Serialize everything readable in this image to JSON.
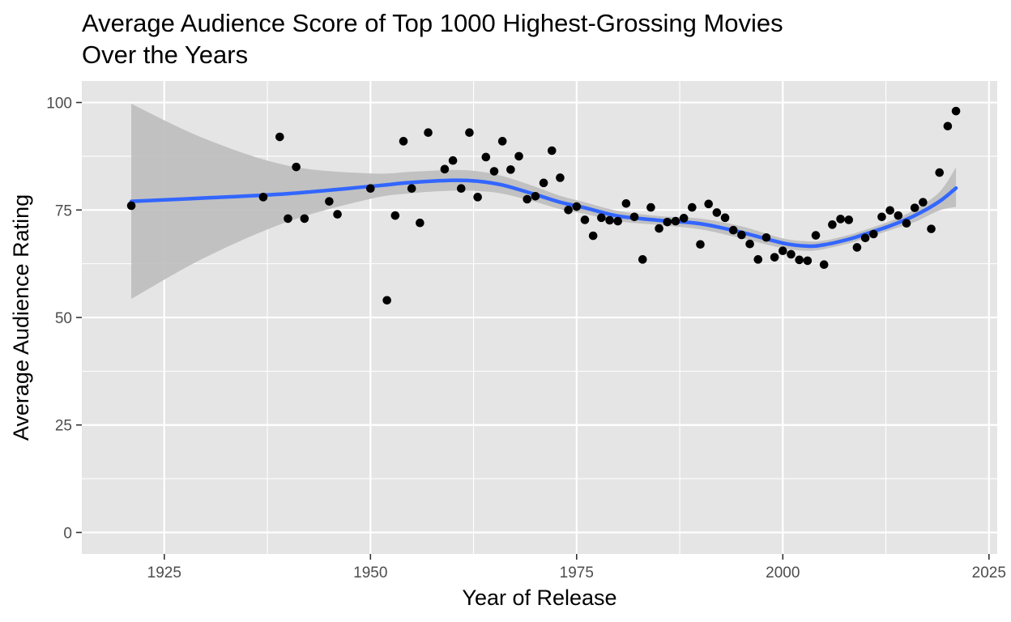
{
  "chart_data": {
    "type": "scatter",
    "title_lines": [
      "Average Audience Score of Top 1000 Highest-Grossing Movies",
      "Over the Years"
    ],
    "xlabel": "Year of Release",
    "ylabel": "Average Audience Rating",
    "xlim": [
      1915,
      2026
    ],
    "ylim": [
      -5,
      105
    ],
    "x_ticks": [
      1925,
      1950,
      1975,
      2000,
      2025
    ],
    "y_ticks": [
      0,
      25,
      50,
      75,
      100
    ],
    "x_tick_labels": [
      "1925",
      "1950",
      "1975",
      "2000",
      "2025"
    ],
    "y_tick_labels": [
      "0",
      "25",
      "50",
      "75",
      "100"
    ],
    "grid": true,
    "legend": "none",
    "colors": {
      "panel_background": "#e5e5e5",
      "grid": "#ffffff",
      "points": "#000000",
      "smooth_line": "#3366ff",
      "confidence_band": "#bcbcbc"
    },
    "series": [
      {
        "type": "scatter",
        "points": [
          [
            1921,
            76
          ],
          [
            1937,
            78
          ],
          [
            1939,
            92
          ],
          [
            1940,
            73
          ],
          [
            1941,
            85
          ],
          [
            1942,
            73
          ],
          [
            1945,
            77
          ],
          [
            1946,
            74
          ],
          [
            1950,
            80
          ],
          [
            1952,
            54
          ],
          [
            1953,
            73.7
          ],
          [
            1954,
            91
          ],
          [
            1955,
            80
          ],
          [
            1956,
            72
          ],
          [
            1957,
            93
          ],
          [
            1959,
            84.5
          ],
          [
            1960,
            86.5
          ],
          [
            1961,
            80
          ],
          [
            1962,
            93
          ],
          [
            1963,
            78
          ],
          [
            1964,
            87.3
          ],
          [
            1965,
            84
          ],
          [
            1966,
            91
          ],
          [
            1967,
            84.4
          ],
          [
            1968,
            87.5
          ],
          [
            1969,
            77.5
          ],
          [
            1970,
            78.2
          ],
          [
            1971,
            81.3
          ],
          [
            1972,
            88.8
          ],
          [
            1973,
            82.5
          ],
          [
            1974,
            75
          ],
          [
            1975,
            75.8
          ],
          [
            1976,
            72.7
          ],
          [
            1977,
            69
          ],
          [
            1978,
            73.2
          ],
          [
            1979,
            72.6
          ],
          [
            1980,
            72.4
          ],
          [
            1981,
            76.5
          ],
          [
            1982,
            73.4
          ],
          [
            1983,
            63.5
          ],
          [
            1984,
            75.6
          ],
          [
            1985,
            70.7
          ],
          [
            1986,
            72.2
          ],
          [
            1987,
            72.4
          ],
          [
            1988,
            73.1
          ],
          [
            1989,
            75.6
          ],
          [
            1990,
            67
          ],
          [
            1991,
            76.4
          ],
          [
            1992,
            74.4
          ],
          [
            1993,
            73.2
          ],
          [
            1994,
            70.3
          ],
          [
            1995,
            69.2
          ],
          [
            1996,
            67.1
          ],
          [
            1997,
            63.5
          ],
          [
            1998,
            68.6
          ],
          [
            1999,
            64
          ],
          [
            2000,
            65.5
          ],
          [
            2001,
            64.7
          ],
          [
            2002,
            63.4
          ],
          [
            2003,
            63.2
          ],
          [
            2004,
            69.1
          ],
          [
            2005,
            62.3
          ],
          [
            2006,
            71.6
          ],
          [
            2007,
            72.9
          ],
          [
            2008,
            72.7
          ],
          [
            2009,
            66.3
          ],
          [
            2010,
            68.5
          ],
          [
            2011,
            69.4
          ],
          [
            2012,
            73.4
          ],
          [
            2013,
            74.9
          ],
          [
            2014,
            73.7
          ],
          [
            2015,
            71.9
          ],
          [
            2016,
            75.5
          ],
          [
            2017,
            76.8
          ],
          [
            2018,
            70.6
          ],
          [
            2019,
            83.7
          ],
          [
            2020,
            94.5
          ],
          [
            2021,
            98
          ]
        ]
      },
      {
        "type": "line",
        "smooth": true,
        "x": [
          1921,
          1930,
          1940,
          1950,
          1955,
          1960,
          1963,
          1966,
          1970,
          1973,
          1976,
          1980,
          1985,
          1990,
          1995,
          2000,
          2003,
          2005,
          2008,
          2010,
          2013,
          2016,
          2019,
          2021
        ],
        "y": [
          77,
          77.8,
          78.8,
          80.5,
          81.4,
          81.9,
          81.7,
          80.8,
          78.6,
          76.8,
          75.5,
          73.6,
          72.6,
          71.8,
          69.8,
          67.3,
          66.6,
          66.9,
          68.2,
          69.4,
          71.3,
          73.7,
          77,
          80.1
        ]
      },
      {
        "type": "band",
        "x": [
          1921,
          1930,
          1940,
          1950,
          1955,
          1960,
          1963,
          1966,
          1970,
          1973,
          1976,
          1980,
          1985,
          1990,
          1995,
          2000,
          2003,
          2005,
          2008,
          2010,
          2013,
          2016,
          2019,
          2021
        ],
        "lower": [
          54.3,
          64,
          72.3,
          77.6,
          78.9,
          79.5,
          79.4,
          78.8,
          76.9,
          75.2,
          74.1,
          72.4,
          71.5,
          70.5,
          68.4,
          66.1,
          65.5,
          65.9,
          67.2,
          68.4,
          70.3,
          72.2,
          74.9,
          75.7
        ],
        "upper": [
          99.7,
          91.5,
          85.3,
          83.5,
          83.9,
          84.3,
          84,
          82.9,
          80.4,
          78.3,
          76.8,
          74.8,
          73.6,
          73,
          71.2,
          68.4,
          67.7,
          67.9,
          69.2,
          70.4,
          72.4,
          75.1,
          79.2,
          84.9
        ]
      }
    ]
  }
}
